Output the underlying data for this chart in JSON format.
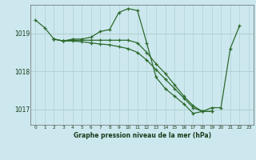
{
  "title": "Graphe pression niveau de la mer (hPa)",
  "bg_color": "#cce8ee",
  "line_color": "#2d6a2d",
  "grid_color_v": "#b0d0d8",
  "grid_color_h": "#aacccc",
  "ylim": [
    1016.6,
    1019.75
  ],
  "xlim": [
    -0.5,
    23.5
  ],
  "yticks": [
    1017,
    1018,
    1019
  ],
  "xticks": [
    0,
    1,
    2,
    3,
    4,
    5,
    6,
    7,
    8,
    9,
    10,
    11,
    12,
    13,
    14,
    15,
    16,
    17,
    18,
    19,
    20,
    21,
    22,
    23
  ],
  "series": [
    {
      "x": [
        0,
        1,
        2,
        3,
        4,
        5,
        6,
        7,
        8,
        9,
        10,
        11,
        12,
        13,
        14,
        15,
        16,
        17,
        18,
        19,
        20,
        21,
        22
      ],
      "y": [
        1019.35,
        1019.15,
        1018.85,
        1018.8,
        1018.85,
        1018.85,
        1018.9,
        1019.05,
        1019.1,
        1019.55,
        1019.65,
        1019.6,
        1018.75,
        1017.85,
        1017.55,
        1017.35,
        1017.15,
        1016.9,
        1016.95,
        1017.05,
        1017.05,
        1018.6,
        1019.2
      ]
    },
    {
      "x": [
        2,
        3,
        4,
        5,
        6,
        7,
        8,
        9,
        10,
        11,
        12,
        13,
        14,
        15,
        16,
        17,
        18,
        19
      ],
      "y": [
        1018.85,
        1018.8,
        1018.8,
        1018.78,
        1018.75,
        1018.72,
        1018.7,
        1018.65,
        1018.6,
        1018.5,
        1018.3,
        1018.05,
        1017.8,
        1017.55,
        1017.3,
        1017.05,
        1016.95,
        1016.95
      ]
    },
    {
      "x": [
        2,
        3,
        4,
        5,
        6,
        7,
        8,
        9,
        10,
        11,
        12,
        13,
        14,
        15,
        16,
        17,
        18,
        19
      ],
      "y": [
        1018.85,
        1018.8,
        1018.82,
        1018.82,
        1018.82,
        1018.82,
        1018.82,
        1018.82,
        1018.82,
        1018.75,
        1018.5,
        1018.2,
        1017.95,
        1017.65,
        1017.35,
        1017.1,
        1016.95,
        1016.95
      ]
    }
  ]
}
